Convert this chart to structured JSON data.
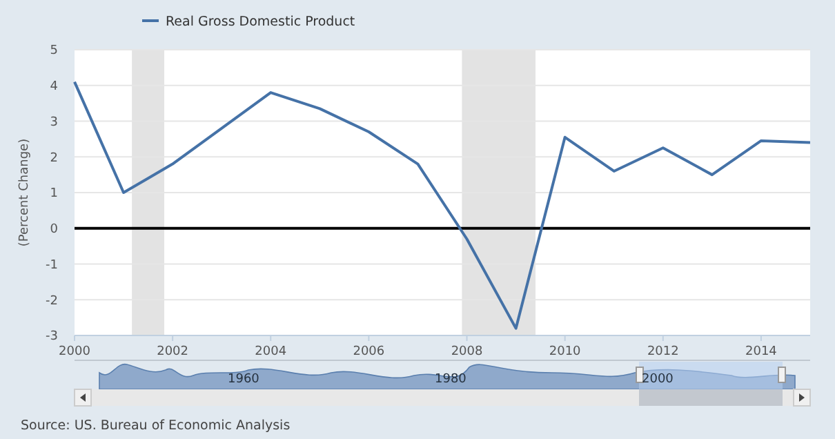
{
  "chart_data": {
    "type": "line",
    "ylabel": "(Percent Change)",
    "x": [
      2000,
      2001,
      2002,
      2003,
      2004,
      2005,
      2006,
      2007,
      2008,
      2009,
      2010,
      2011,
      2012,
      2013,
      2014,
      2015
    ],
    "series": [
      {
        "name": "Real Gross Domestic Product",
        "color": "#4572a7",
        "values": [
          4.1,
          1.0,
          1.8,
          2.8,
          3.8,
          3.35,
          2.7,
          1.8,
          -0.3,
          -2.8,
          2.55,
          1.6,
          2.25,
          1.5,
          2.45,
          2.4
        ]
      }
    ],
    "xlim": [
      2000,
      2015
    ],
    "xticks": [
      2000,
      2002,
      2004,
      2006,
      2008,
      2010,
      2012,
      2014
    ],
    "ylim": [
      -3,
      5
    ],
    "yticks": [
      -3,
      -2,
      -1,
      0,
      1,
      2,
      3,
      4,
      5
    ],
    "grid": "y",
    "legend": "top left",
    "marker": "none",
    "line_style": "solid",
    "ref_lines": [
      {
        "axis": "y",
        "value": 0,
        "color": "#000000"
      }
    ],
    "bands": [
      {
        "axis": "x",
        "from": 2001.17,
        "to": 2001.83,
        "color": "#e3e3e3"
      },
      {
        "axis": "x",
        "from": 2007.9,
        "to": 2009.4,
        "color": "#e3e3e3"
      }
    ],
    "annotations": [
      "Source: US. Bureau of Economic Analysis",
      "1960",
      "1980",
      "2000"
    ]
  }
}
